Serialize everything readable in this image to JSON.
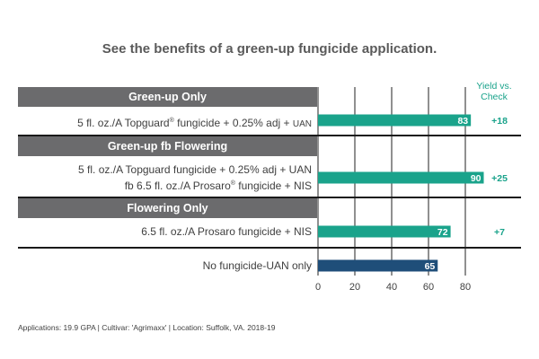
{
  "title": "See the benefits of a green-up fungicide application.",
  "column_header": {
    "line1": "Yield vs.",
    "line2": "Check"
  },
  "sections": [
    {
      "label": "Green-up Only"
    },
    {
      "label": "Green-up fb Flowering"
    },
    {
      "label": "Flowering Only"
    }
  ],
  "rows": [
    {
      "label_line1_a": "5 fl. oz./A Topguard",
      "label_line1_reg": "®",
      "label_line1_b": " fungicide + 0.25% adj + ",
      "label_line1_c": "UAN"
    },
    {
      "label_line1": "5 fl. oz./A Topguard fungicide + 0.25% adj + UAN",
      "label_line2_a": "fb 6.5 fl. oz./A Prosaro",
      "label_line2_reg": "®",
      "label_line2_b": " fungicide + NIS"
    },
    {
      "label_line1": "6.5 fl. oz./A Prosaro fungicide + NIS"
    },
    {
      "label_line1": "No fungicide-UAN only"
    }
  ],
  "footer": "Applications: 19.9 GPA  |  Cultivar: 'Agrimaxx'  |  Location: Suffolk, VA. 2018-19",
  "colors": {
    "teal": "#1aa38b",
    "navy": "#1f4e79",
    "band": "#6b6b6d",
    "grid": "#222222",
    "vs_text": "#1aa38b"
  },
  "chart_data": {
    "type": "bar",
    "orientation": "horizontal",
    "categories": [
      "5 fl. oz./A Topguard® fungicide + 0.25% adj + UAN",
      "5 fl. oz./A Topguard fungicide + 0.25% adj + UAN fb 6.5 fl. oz./A Prosaro® fungicide + NIS",
      "6.5 fl. oz./A Prosaro fungicide + NIS",
      "No fungicide-UAN only"
    ],
    "values": [
      83,
      90,
      72,
      65
    ],
    "value_labels": [
      "83",
      "90",
      "72",
      "65"
    ],
    "yield_vs_check": [
      "+18",
      "+25",
      "+7",
      ""
    ],
    "bar_colors": [
      "#1aa38b",
      "#1aa38b",
      "#1aa38b",
      "#1f4e79"
    ],
    "xlim": [
      0,
      90
    ],
    "xticks": [
      0,
      20,
      40,
      60,
      80
    ],
    "xtick_labels": [
      "0",
      "20",
      "40",
      "60",
      "80"
    ],
    "grid": true
  }
}
